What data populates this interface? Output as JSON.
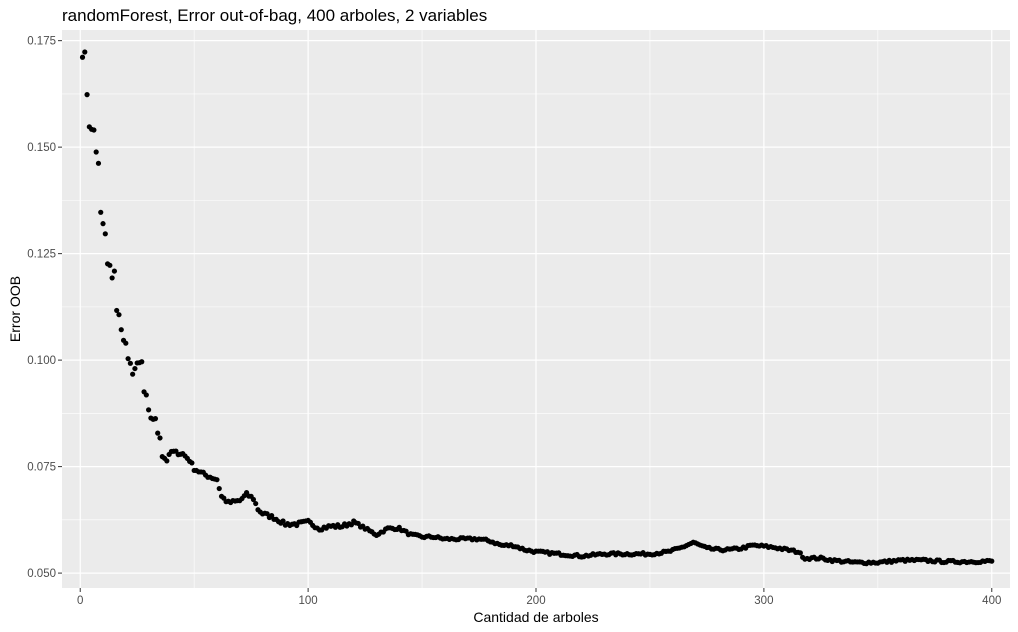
{
  "chart_data": {
    "type": "scatter",
    "title": "randomForest, Error out-of-bag, 400 arboles, 2 variables",
    "xlabel": "Cantidad de arboles",
    "ylabel": "Error OOB",
    "xlim": [
      -8,
      408
    ],
    "ylim": [
      0.0465,
      0.1775
    ],
    "x_ticks": [
      0,
      100,
      200,
      300,
      400
    ],
    "x_tick_labels": [
      "0",
      "100",
      "200",
      "300",
      "400"
    ],
    "y_ticks": [
      0.05,
      0.075,
      0.1,
      0.125,
      0.15,
      0.175
    ],
    "y_tick_labels": [
      "0.050",
      "0.075",
      "0.100",
      "0.125",
      "0.150",
      "0.175"
    ],
    "grid": true,
    "background": "#ebebeb",
    "grid_color": "#ffffff",
    "point_color": "#000000",
    "series": [
      {
        "anchors": [
          [
            1,
            0.1715
          ],
          [
            2,
            0.172
          ],
          [
            3,
            0.1625
          ],
          [
            4,
            0.155
          ],
          [
            5,
            0.154
          ],
          [
            6,
            0.154
          ],
          [
            7,
            0.149
          ],
          [
            8,
            0.146
          ],
          [
            9,
            0.1345
          ],
          [
            10,
            0.132
          ],
          [
            11,
            0.1295
          ],
          [
            12,
            0.1225
          ],
          [
            13,
            0.122
          ],
          [
            14,
            0.1195
          ],
          [
            15,
            0.121
          ],
          [
            16,
            0.1115
          ],
          [
            17,
            0.1105
          ],
          [
            18,
            0.1075
          ],
          [
            19,
            0.1045
          ],
          [
            20,
            0.104
          ],
          [
            21,
            0.1
          ],
          [
            22,
            0.099
          ],
          [
            23,
            0.097
          ],
          [
            25,
            0.099
          ],
          [
            27,
            0.0995
          ],
          [
            28,
            0.0925
          ],
          [
            29,
            0.0915
          ],
          [
            30,
            0.088
          ],
          [
            31,
            0.0865
          ],
          [
            33,
            0.086
          ],
          [
            34,
            0.083
          ],
          [
            35,
            0.082
          ],
          [
            36,
            0.0775
          ],
          [
            38,
            0.0765
          ],
          [
            40,
            0.0785
          ],
          [
            45,
            0.078
          ],
          [
            48,
            0.0765
          ],
          [
            50,
            0.0745
          ],
          [
            55,
            0.073
          ],
          [
            60,
            0.072
          ],
          [
            62,
            0.068
          ],
          [
            65,
            0.0665
          ],
          [
            70,
            0.067
          ],
          [
            73,
            0.0685
          ],
          [
            76,
            0.0675
          ],
          [
            78,
            0.065
          ],
          [
            80,
            0.064
          ],
          [
            85,
            0.063
          ],
          [
            90,
            0.0615
          ],
          [
            95,
            0.0615
          ],
          [
            100,
            0.062
          ],
          [
            105,
            0.0605
          ],
          [
            110,
            0.061
          ],
          [
            115,
            0.061
          ],
          [
            120,
            0.062
          ],
          [
            125,
            0.0605
          ],
          [
            130,
            0.059
          ],
          [
            135,
            0.0605
          ],
          [
            140,
            0.0605
          ],
          [
            145,
            0.059
          ],
          [
            150,
            0.0585
          ],
          [
            155,
            0.0585
          ],
          [
            160,
            0.058
          ],
          [
            165,
            0.058
          ],
          [
            170,
            0.058
          ],
          [
            175,
            0.058
          ],
          [
            180,
            0.0575
          ],
          [
            185,
            0.0565
          ],
          [
            190,
            0.0565
          ],
          [
            195,
            0.0555
          ],
          [
            200,
            0.055
          ],
          [
            210,
            0.0545
          ],
          [
            220,
            0.054
          ],
          [
            230,
            0.0545
          ],
          [
            240,
            0.0545
          ],
          [
            250,
            0.0545
          ],
          [
            258,
            0.055
          ],
          [
            263,
            0.0558
          ],
          [
            269,
            0.0572
          ],
          [
            275,
            0.0558
          ],
          [
            280,
            0.0555
          ],
          [
            285,
            0.0555
          ],
          [
            290,
            0.0558
          ],
          [
            295,
            0.0565
          ],
          [
            300,
            0.0563
          ],
          [
            305,
            0.056
          ],
          [
            310,
            0.0555
          ],
          [
            315,
            0.055
          ],
          [
            318,
            0.0535
          ],
          [
            325,
            0.0535
          ],
          [
            330,
            0.053
          ],
          [
            340,
            0.0525
          ],
          [
            350,
            0.0525
          ],
          [
            360,
            0.053
          ],
          [
            370,
            0.053
          ],
          [
            380,
            0.0527
          ],
          [
            390,
            0.0527
          ],
          [
            400,
            0.0528
          ]
        ],
        "n_points": 400
      }
    ]
  }
}
